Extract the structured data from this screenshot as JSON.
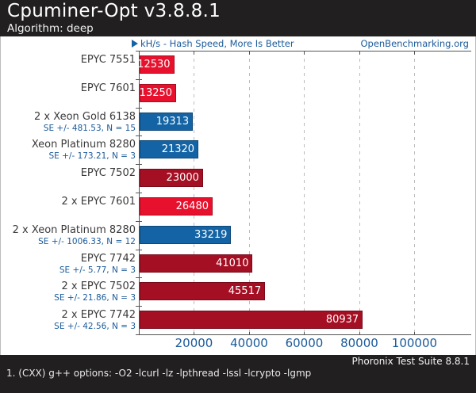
{
  "header": {
    "title": "Cpuminer-Opt v3.8.8.1",
    "subtitle": "Algorithm: deep"
  },
  "watermark": {
    "axis_note": "kH/s - Hash Speed, More Is Better",
    "site": "OpenBenchmarking.org"
  },
  "chart_data": {
    "type": "bar",
    "orientation": "horizontal",
    "title": "Cpuminer-Opt v3.8.8.1",
    "subtitle": "Algorithm: deep",
    "value_axis_label": "kH/s - Hash Speed, More Is Better",
    "higher_is_better": true,
    "xlim": [
      0,
      120600
    ],
    "x_ticks": [
      20000,
      40000,
      60000,
      80000,
      100000
    ],
    "grid": "vertical-dashed",
    "bars": [
      {
        "label": "EPYC 7551",
        "value": 12530,
        "se": "",
        "color": "red"
      },
      {
        "label": "EPYC 7601",
        "value": 13250,
        "se": "",
        "color": "red"
      },
      {
        "label": "2 x Xeon Gold 6138",
        "value": 19313,
        "se": "SE +/- 481.53, N = 15",
        "color": "blue"
      },
      {
        "label": "Xeon Platinum 8280",
        "value": 21320,
        "se": "SE +/- 173.21, N = 3",
        "color": "blue"
      },
      {
        "label": "EPYC 7502",
        "value": 23000,
        "se": "",
        "color": "dark_red"
      },
      {
        "label": "2 x EPYC 7601",
        "value": 26480,
        "se": "",
        "color": "red"
      },
      {
        "label": "2 x Xeon Platinum 8280",
        "value": 33219,
        "se": "SE +/- 1006.33, N = 12",
        "color": "blue"
      },
      {
        "label": "EPYC 7742",
        "value": 41010,
        "se": "SE +/- 5.77, N = 3",
        "color": "dark_red"
      },
      {
        "label": "2 x EPYC 7502",
        "value": 45517,
        "se": "SE +/- 21.86, N = 3",
        "color": "dark_red"
      },
      {
        "label": "2 x EPYC 7742",
        "value": 80937,
        "se": "SE +/- 42.56, N = 3",
        "color": "dark_red"
      }
    ]
  },
  "colors": {
    "red": "#e8112d",
    "dark_red": "#a50f23",
    "blue": "#1464a5",
    "blue_text": "#1a5a9a",
    "header_bg": "#211f1f",
    "grid": "#bdbdbd"
  },
  "footer": {
    "suite": "Phoronix Test Suite 8.8.1",
    "note": "1. (CXX) g++ options: -O2 -lcurl -lz -lpthread -lssl -lcrypto -lgmp"
  }
}
